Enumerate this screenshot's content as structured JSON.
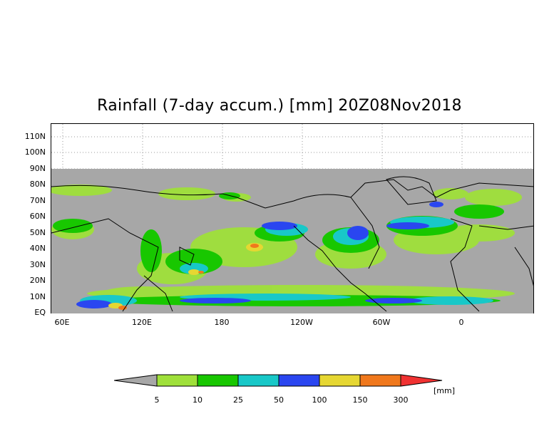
{
  "title": "Rainfall (7-day accum.) [mm] 20Z08Nov2018",
  "lat_labels": [
    "110N",
    "100N",
    "90N",
    "80N",
    "70N",
    "60N",
    "50N",
    "40N",
    "30N",
    "20N",
    "10N",
    "EQ"
  ],
  "lon_labels": [
    "60E",
    "120E",
    "180",
    "120W",
    "60W",
    "0"
  ],
  "colorbar": {
    "colors": [
      "#a7a7a7",
      "#9fe03a",
      "#18c700",
      "#18c8c8",
      "#2a46f0",
      "#e6d732",
      "#f0781c",
      "#f03232"
    ],
    "ticks": [
      "5",
      "10",
      "25",
      "50",
      "100",
      "150",
      "300"
    ],
    "unit": "[mm]"
  },
  "map": {
    "missing_color": "#a7a7a7",
    "no_data_region": "above 90N"
  }
}
